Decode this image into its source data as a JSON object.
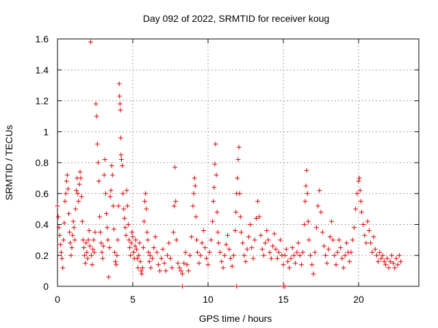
{
  "colors": {
    "series": "#e00000",
    "grid": "#a0a0a0",
    "axis": "#000000"
  },
  "chart_data": {
    "type": "scatter",
    "title": "Day 092 of 2022, SRMTID for receiver koug",
    "xlabel": "GPS time / hours",
    "ylabel": "SRMTID / TECUs",
    "xlim": [
      0,
      24
    ],
    "ylim": [
      0,
      1.6
    ],
    "grid": true,
    "marker": "plus",
    "xticks": [
      0,
      5,
      10,
      15,
      20
    ],
    "xtick_labels": [
      "0",
      "5",
      "10",
      "15",
      "20"
    ],
    "yticks": [
      0,
      0.2,
      0.4,
      0.6,
      0.8,
      1.0,
      1.2,
      1.4,
      1.6
    ],
    "ytick_labels": [
      "0",
      "0.2",
      "0.4",
      "0.6",
      "0.8",
      "1",
      "1.2",
      "1.4",
      "1.6"
    ],
    "series": [
      {
        "name": "SRMTID",
        "points": [
          [
            0.0,
            0.52
          ],
          [
            0.05,
            0.45
          ],
          [
            0.1,
            0.38
          ],
          [
            0.15,
            0.33
          ],
          [
            0.2,
            0.27
          ],
          [
            0.25,
            0.22
          ],
          [
            0.3,
            0.18
          ],
          [
            0.35,
            0.12
          ],
          [
            0.4,
            0.3
          ],
          [
            0.45,
            0.41
          ],
          [
            0.5,
            0.55
          ],
          [
            0.55,
            0.6
          ],
          [
            0.6,
            0.68
          ],
          [
            0.65,
            0.72
          ],
          [
            0.7,
            0.63
          ],
          [
            0.75,
            0.47
          ],
          [
            0.8,
            0.35
          ],
          [
            0.85,
            0.28
          ],
          [
            0.9,
            0.2
          ],
          [
            0.95,
            0.25
          ],
          [
            1.0,
            0.33
          ],
          [
            1.05,
            0.42
          ],
          [
            1.1,
            0.38
          ],
          [
            1.15,
            0.3
          ],
          [
            1.2,
            0.5
          ],
          [
            1.25,
            0.62
          ],
          [
            1.3,
            0.7
          ],
          [
            1.35,
            0.6
          ],
          [
            1.4,
            0.55
          ],
          [
            1.45,
            0.66
          ],
          [
            1.5,
            0.74
          ],
          [
            1.55,
            0.7
          ],
          [
            1.6,
            0.58
          ],
          [
            1.65,
            0.42
          ],
          [
            1.7,
            0.3
          ],
          [
            1.75,
            0.25
          ],
          [
            1.8,
            0.2
          ],
          [
            1.85,
            0.15
          ],
          [
            1.9,
            0.28
          ],
          [
            1.95,
            0.22
          ],
          [
            2.0,
            0.18
          ],
          [
            2.05,
            0.3
          ],
          [
            2.1,
            0.36
          ],
          [
            2.15,
            0.26
          ],
          [
            2.2,
            1.58
          ],
          [
            2.25,
            0.2
          ],
          [
            2.3,
            0.14
          ],
          [
            2.35,
            0.24
          ],
          [
            2.4,
            0.3
          ],
          [
            2.45,
            0.22
          ],
          [
            2.5,
            0.35
          ],
          [
            2.55,
            1.18
          ],
          [
            2.6,
            1.1
          ],
          [
            2.65,
            0.92
          ],
          [
            2.7,
            0.8
          ],
          [
            2.75,
            0.68
          ],
          [
            2.8,
            0.45
          ],
          [
            2.85,
            0.35
          ],
          [
            2.9,
            0.28
          ],
          [
            2.95,
            0.22
          ],
          [
            3.0,
            0.18
          ],
          [
            3.05,
            0.26
          ],
          [
            3.1,
            0.72
          ],
          [
            3.15,
            0.82
          ],
          [
            3.2,
            0.6
          ],
          [
            3.25,
            0.47
          ],
          [
            3.3,
            0.38
          ],
          [
            3.35,
            0.3
          ],
          [
            3.4,
            0.06
          ],
          [
            3.45,
            0.25
          ],
          [
            3.5,
            0.58
          ],
          [
            3.55,
            0.62
          ],
          [
            3.6,
            0.78
          ],
          [
            3.65,
            0.72
          ],
          [
            3.7,
            0.52
          ],
          [
            3.75,
            0.37
          ],
          [
            3.8,
            0.22
          ],
          [
            3.85,
            0.16
          ],
          [
            3.9,
            0.14
          ],
          [
            3.95,
            0.2
          ],
          [
            4.0,
            0.3
          ],
          [
            4.05,
            0.52
          ],
          [
            4.1,
            1.31
          ],
          [
            4.12,
            1.23
          ],
          [
            4.15,
            1.18
          ],
          [
            4.18,
            1.14
          ],
          [
            4.2,
            0.96
          ],
          [
            4.22,
            0.85
          ],
          [
            4.25,
            0.82
          ],
          [
            4.3,
            0.78
          ],
          [
            4.35,
            0.6
          ],
          [
            4.4,
            0.5
          ],
          [
            4.45,
            0.44
          ],
          [
            4.5,
            0.38
          ],
          [
            4.55,
            0.33
          ],
          [
            4.6,
            0.62
          ],
          [
            4.65,
            0.52
          ],
          [
            4.7,
            0.4
          ],
          [
            4.75,
            0.3
          ],
          [
            4.8,
            0.25
          ],
          [
            4.85,
            0.2
          ],
          [
            4.9,
            0.28
          ],
          [
            4.95,
            0.35
          ],
          [
            5.0,
            0.32
          ],
          [
            5.05,
            0.22
          ],
          [
            5.1,
            0.18
          ],
          [
            5.15,
            0.26
          ],
          [
            5.2,
            0.3
          ],
          [
            5.25,
            0.24
          ],
          [
            5.3,
            0.18
          ],
          [
            5.35,
            0.12
          ],
          [
            5.4,
            0.2
          ],
          [
            5.45,
            0.28
          ],
          [
            5.5,
            0.16
          ],
          [
            5.55,
            0.1
          ],
          [
            5.6,
            0.08
          ],
          [
            5.65,
            0.12
          ],
          [
            5.7,
            0.25
          ],
          [
            5.75,
            0.42
          ],
          [
            5.8,
            0.55
          ],
          [
            5.85,
            0.6
          ],
          [
            5.9,
            0.5
          ],
          [
            5.95,
            0.35
          ],
          [
            6.0,
            0.3
          ],
          [
            6.05,
            0.22
          ],
          [
            6.1,
            0.16
          ],
          [
            6.15,
            0.2
          ],
          [
            6.2,
            0.12
          ],
          [
            6.3,
            0.18
          ],
          [
            6.4,
            0.25
          ],
          [
            6.5,
            0.32
          ],
          [
            6.6,
            0.22
          ],
          [
            6.7,
            0.14
          ],
          [
            6.8,
            0.1
          ],
          [
            6.9,
            0.18
          ],
          [
            7.0,
            0.24
          ],
          [
            7.1,
            0.15
          ],
          [
            7.2,
            0.1
          ],
          [
            7.3,
            0.2
          ],
          [
            7.4,
            0.28
          ],
          [
            7.5,
            0.18
          ],
          [
            7.6,
            0.12
          ],
          [
            7.7,
            0.35
          ],
          [
            7.75,
            0.52
          ],
          [
            7.8,
            0.77
          ],
          [
            7.85,
            0.55
          ],
          [
            7.9,
            0.3
          ],
          [
            8.0,
            0.15
          ],
          [
            8.1,
            0.12
          ],
          [
            8.2,
            0.1
          ],
          [
            8.3,
            0.08
          ],
          [
            8.4,
            0.15
          ],
          [
            8.5,
            0.22
          ],
          [
            8.6,
            0.14
          ],
          [
            8.7,
            0.1
          ],
          [
            8.8,
            0.2
          ],
          [
            8.9,
            0.32
          ],
          [
            9.0,
            0.52
          ],
          [
            9.05,
            0.6
          ],
          [
            9.1,
            0.7
          ],
          [
            9.15,
            0.65
          ],
          [
            9.2,
            0.45
          ],
          [
            9.25,
            0.3
          ],
          [
            9.3,
            0.22
          ],
          [
            9.4,
            0.15
          ],
          [
            9.5,
            0.2
          ],
          [
            9.6,
            0.28
          ],
          [
            9.7,
            0.36
          ],
          [
            9.8,
            0.25
          ],
          [
            9.9,
            0.18
          ],
          [
            10.0,
            0.14
          ],
          [
            10.1,
            0.22
          ],
          [
            10.2,
            0.3
          ],
          [
            10.3,
            0.42
          ],
          [
            10.35,
            0.55
          ],
          [
            10.4,
            0.64
          ],
          [
            10.45,
            0.79
          ],
          [
            10.5,
            0.92
          ],
          [
            10.55,
            0.72
          ],
          [
            10.6,
            0.48
          ],
          [
            10.65,
            0.35
          ],
          [
            10.7,
            0.28
          ],
          [
            10.8,
            0.22
          ],
          [
            10.9,
            0.16
          ],
          [
            11.0,
            0.12
          ],
          [
            11.1,
            0.2
          ],
          [
            11.2,
            0.27
          ],
          [
            11.3,
            0.33
          ],
          [
            11.4,
            0.24
          ],
          [
            11.5,
            0.18
          ],
          [
            11.6,
            0.13
          ],
          [
            11.7,
            0.2
          ],
          [
            11.8,
            0.36
          ],
          [
            11.85,
            0.48
          ],
          [
            11.9,
            0.6
          ],
          [
            11.95,
            0.7
          ],
          [
            12.0,
            0.82
          ],
          [
            12.05,
            0.9
          ],
          [
            12.1,
            0.6
          ],
          [
            12.15,
            0.45
          ],
          [
            12.2,
            0.35
          ],
          [
            12.3,
            0.28
          ],
          [
            12.4,
            0.2
          ],
          [
            12.5,
            0.16
          ],
          [
            12.6,
            0.24
          ],
          [
            12.7,
            0.32
          ],
          [
            12.8,
            0.4
          ],
          [
            12.9,
            0.25
          ],
          [
            13.0,
            0.18
          ],
          [
            13.1,
            0.3
          ],
          [
            13.2,
            0.44
          ],
          [
            13.3,
            0.55
          ],
          [
            13.4,
            0.45
          ],
          [
            13.5,
            0.33
          ],
          [
            13.6,
            0.24
          ],
          [
            13.7,
            0.2
          ],
          [
            13.8,
            0.28
          ],
          [
            13.9,
            0.36
          ],
          [
            14.0,
            0.3
          ],
          [
            14.1,
            0.22
          ],
          [
            14.2,
            0.18
          ],
          [
            14.3,
            0.26
          ],
          [
            14.4,
            0.34
          ],
          [
            14.5,
            0.24
          ],
          [
            14.6,
            0.18
          ],
          [
            14.7,
            0.22
          ],
          [
            14.8,
            0.3
          ],
          [
            14.9,
            0.2
          ],
          [
            15.0,
            0.14
          ],
          [
            15.1,
            0.2
          ],
          [
            15.2,
            0.24
          ],
          [
            15.3,
            0.16
          ],
          [
            15.4,
            0.12
          ],
          [
            15.5,
            0.18
          ],
          [
            15.6,
            0.25
          ],
          [
            15.7,
            0.2
          ],
          [
            15.8,
            0.15
          ],
          [
            15.9,
            0.22
          ],
          [
            16.0,
            0.28
          ],
          [
            16.1,
            0.2
          ],
          [
            16.2,
            0.14
          ],
          [
            16.3,
            0.22
          ],
          [
            16.4,
            0.4
          ],
          [
            16.45,
            0.55
          ],
          [
            16.5,
            0.65
          ],
          [
            16.55,
            0.75
          ],
          [
            16.6,
            0.6
          ],
          [
            16.65,
            0.42
          ],
          [
            16.7,
            0.3
          ],
          [
            16.8,
            0.2
          ],
          [
            16.9,
            0.14
          ],
          [
            17.0,
            0.08
          ],
          [
            17.1,
            0.22
          ],
          [
            17.2,
            0.38
          ],
          [
            17.3,
            0.52
          ],
          [
            17.4,
            0.62
          ],
          [
            17.5,
            0.48
          ],
          [
            17.6,
            0.35
          ],
          [
            17.7,
            0.26
          ],
          [
            17.8,
            0.2
          ],
          [
            17.9,
            0.15
          ],
          [
            18.0,
            0.24
          ],
          [
            18.1,
            0.32
          ],
          [
            18.2,
            0.42
          ],
          [
            18.3,
            0.3
          ],
          [
            18.4,
            0.2
          ],
          [
            18.5,
            0.14
          ],
          [
            18.6,
            0.22
          ],
          [
            18.7,
            0.3
          ],
          [
            18.8,
            0.25
          ],
          [
            18.9,
            0.18
          ],
          [
            19.0,
            0.12
          ],
          [
            19.1,
            0.2
          ],
          [
            19.2,
            0.28
          ],
          [
            19.3,
            0.22
          ],
          [
            19.4,
            0.16
          ],
          [
            19.5,
            0.22
          ],
          [
            19.6,
            0.3
          ],
          [
            19.7,
            0.38
          ],
          [
            19.8,
            0.5
          ],
          [
            19.9,
            0.6
          ],
          [
            20.0,
            0.68
          ],
          [
            20.05,
            0.7
          ],
          [
            20.1,
            0.62
          ],
          [
            20.15,
            0.55
          ],
          [
            20.2,
            0.48
          ],
          [
            20.3,
            0.4
          ],
          [
            20.4,
            0.33
          ],
          [
            20.5,
            0.28
          ],
          [
            20.6,
            0.42
          ],
          [
            20.7,
            0.36
          ],
          [
            20.8,
            0.28
          ],
          [
            20.9,
            0.22
          ],
          [
            21.0,
            0.32
          ],
          [
            21.1,
            0.24
          ],
          [
            21.2,
            0.2
          ],
          [
            21.3,
            0.16
          ],
          [
            21.4,
            0.22
          ],
          [
            21.5,
            0.18
          ],
          [
            21.6,
            0.2
          ],
          [
            21.7,
            0.16
          ],
          [
            21.8,
            0.14
          ],
          [
            21.9,
            0.18
          ],
          [
            22.0,
            0.12
          ],
          [
            22.1,
            0.16
          ],
          [
            22.2,
            0.2
          ],
          [
            22.3,
            0.15
          ],
          [
            22.4,
            0.12
          ],
          [
            22.5,
            0.18
          ],
          [
            22.6,
            0.14
          ],
          [
            22.7,
            0.2
          ],
          [
            22.8,
            0.16
          ],
          [
            8.3,
            0.0
          ],
          [
            15.0,
            0.0
          ],
          [
            15.1,
            0.0
          ],
          [
            11.9,
            0.0
          ]
        ]
      }
    ]
  }
}
